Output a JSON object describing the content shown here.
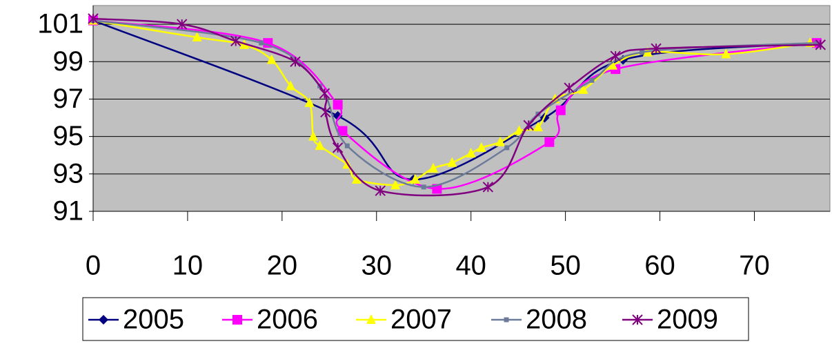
{
  "chart_data": {
    "type": "line",
    "xlim": [
      0,
      78
    ],
    "xticks": [
      0,
      10,
      20,
      30,
      40,
      50,
      60,
      70
    ],
    "ylim": [
      91,
      102
    ],
    "yticks": [
      91,
      93,
      95,
      97,
      99,
      101
    ],
    "grid": true,
    "plot_background": "#c0c0c0",
    "legend": "bottom",
    "smooth": true,
    "series": [
      {
        "name": "2005",
        "color": "#000080",
        "marker": "diamond",
        "x": [
          0,
          25.9,
          33.9,
          47.8,
          56.1,
          76.6
        ],
        "values": [
          101.2,
          96.1,
          92.7,
          96.0,
          99.1,
          100.0
        ]
      },
      {
        "name": "2006",
        "color": "#ff00ff",
        "marker": "square",
        "x": [
          0,
          18.5,
          25.9,
          26.4,
          36.4,
          48.3,
          49.5,
          55.3,
          76.6
        ],
        "values": [
          101.2,
          100.0,
          96.7,
          95.3,
          92.2,
          94.7,
          96.4,
          98.6,
          100.0
        ]
      },
      {
        "name": "2007",
        "color": "#ffff00",
        "marker": "triangle",
        "x": [
          0,
          11.0,
          16.0,
          18.9,
          20.9,
          22.9,
          23.3,
          24.0,
          26.9,
          27.9,
          32.0,
          34.1,
          36.0,
          38.0,
          40.0,
          41.1,
          43.1,
          45.1,
          47.1,
          48.9,
          51.9,
          55.0,
          58.7,
          67.0,
          75.9
        ],
        "values": [
          101.2,
          100.3,
          99.9,
          99.1,
          97.7,
          96.8,
          95.0,
          94.5,
          93.5,
          92.7,
          92.4,
          92.7,
          93.3,
          93.6,
          94.1,
          94.4,
          94.7,
          95.3,
          95.5,
          97.0,
          97.5,
          98.8,
          99.5,
          99.4,
          100.0
        ]
      },
      {
        "name": "2008",
        "color": "#6d7b9a",
        "marker": "small-square",
        "x": [
          0,
          17.8,
          24.0,
          26.9,
          35.0,
          43.8,
          47.1,
          52.8,
          58.1,
          76.6
        ],
        "values": [
          101.2,
          100.0,
          97.7,
          94.5,
          92.3,
          94.4,
          96.2,
          98.0,
          99.5,
          100.0
        ]
      },
      {
        "name": "2009",
        "color": "#800080",
        "marker": "asterisk",
        "x": [
          0,
          9.4,
          15.1,
          21.4,
          24.5,
          24.6,
          25.9,
          30.4,
          41.8,
          46.1,
          50.4,
          55.3,
          59.6,
          77.0
        ],
        "values": [
          101.3,
          101.0,
          100.1,
          99.0,
          97.3,
          96.3,
          94.4,
          92.1,
          92.3,
          95.6,
          97.6,
          99.3,
          99.7,
          99.9
        ]
      }
    ]
  }
}
